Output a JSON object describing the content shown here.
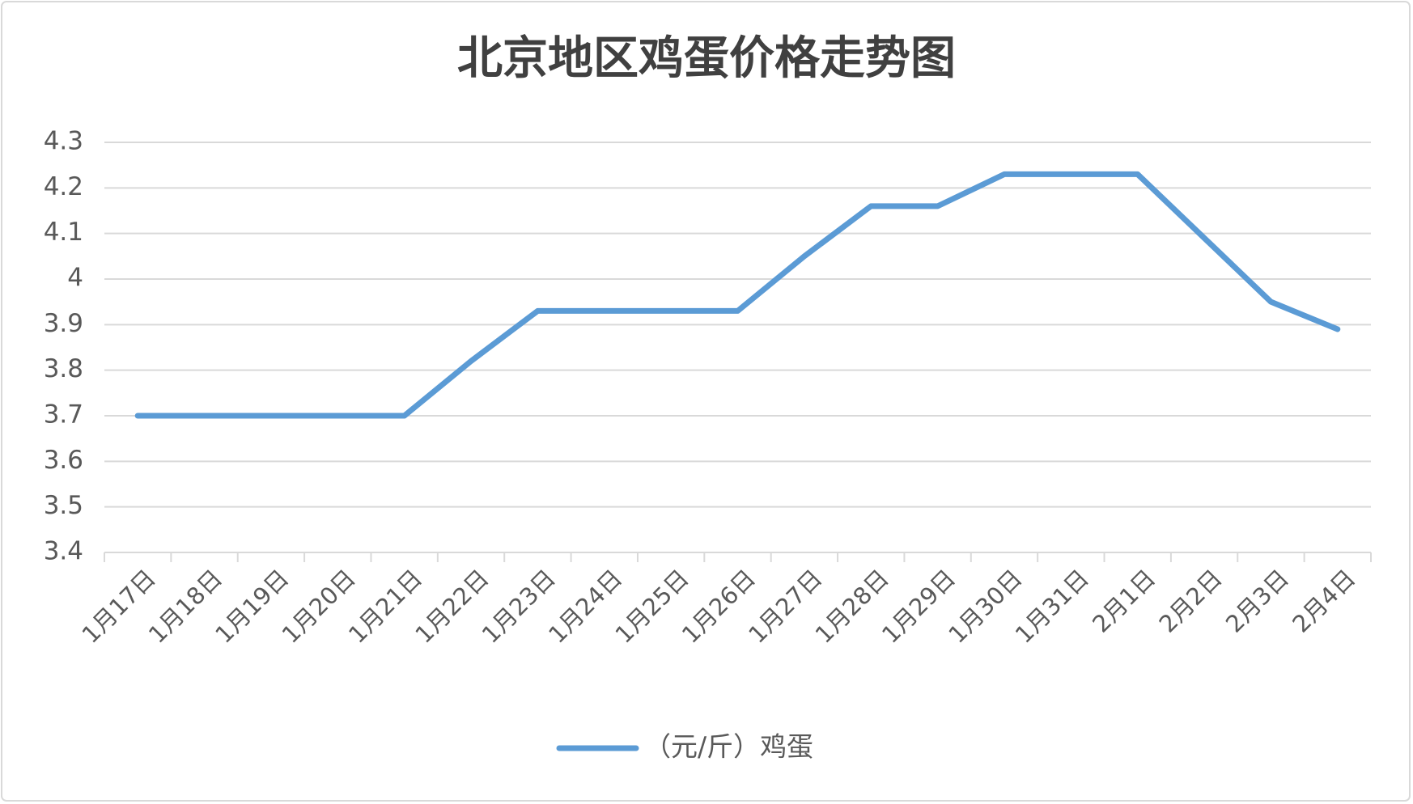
{
  "chart_data": {
    "type": "line",
    "title": "北京地区鸡蛋价格走势图",
    "categories": [
      "1月17日",
      "1月18日",
      "1月19日",
      "1月20日",
      "1月21日",
      "1月22日",
      "1月23日",
      "1月24日",
      "1月25日",
      "1月26日",
      "1月27日",
      "1月28日",
      "1月29日",
      "1月30日",
      "1月31日",
      "2月1日",
      "2月2日",
      "2月3日",
      "2月4日"
    ],
    "series": [
      {
        "name": "（元/斤）鸡蛋",
        "color": "#5b9bd5",
        "values": [
          3.7,
          3.7,
          3.7,
          3.7,
          3.7,
          3.82,
          3.93,
          3.93,
          3.93,
          3.93,
          4.05,
          4.16,
          4.16,
          4.23,
          4.23,
          4.23,
          4.09,
          3.95,
          3.89
        ]
      }
    ],
    "ylim": [
      3.4,
      4.3
    ],
    "yticks": [
      3.4,
      3.5,
      3.6,
      3.7,
      3.8,
      3.9,
      4,
      4.1,
      4.2,
      4.3
    ],
    "grid": true,
    "legend": "bottom"
  }
}
